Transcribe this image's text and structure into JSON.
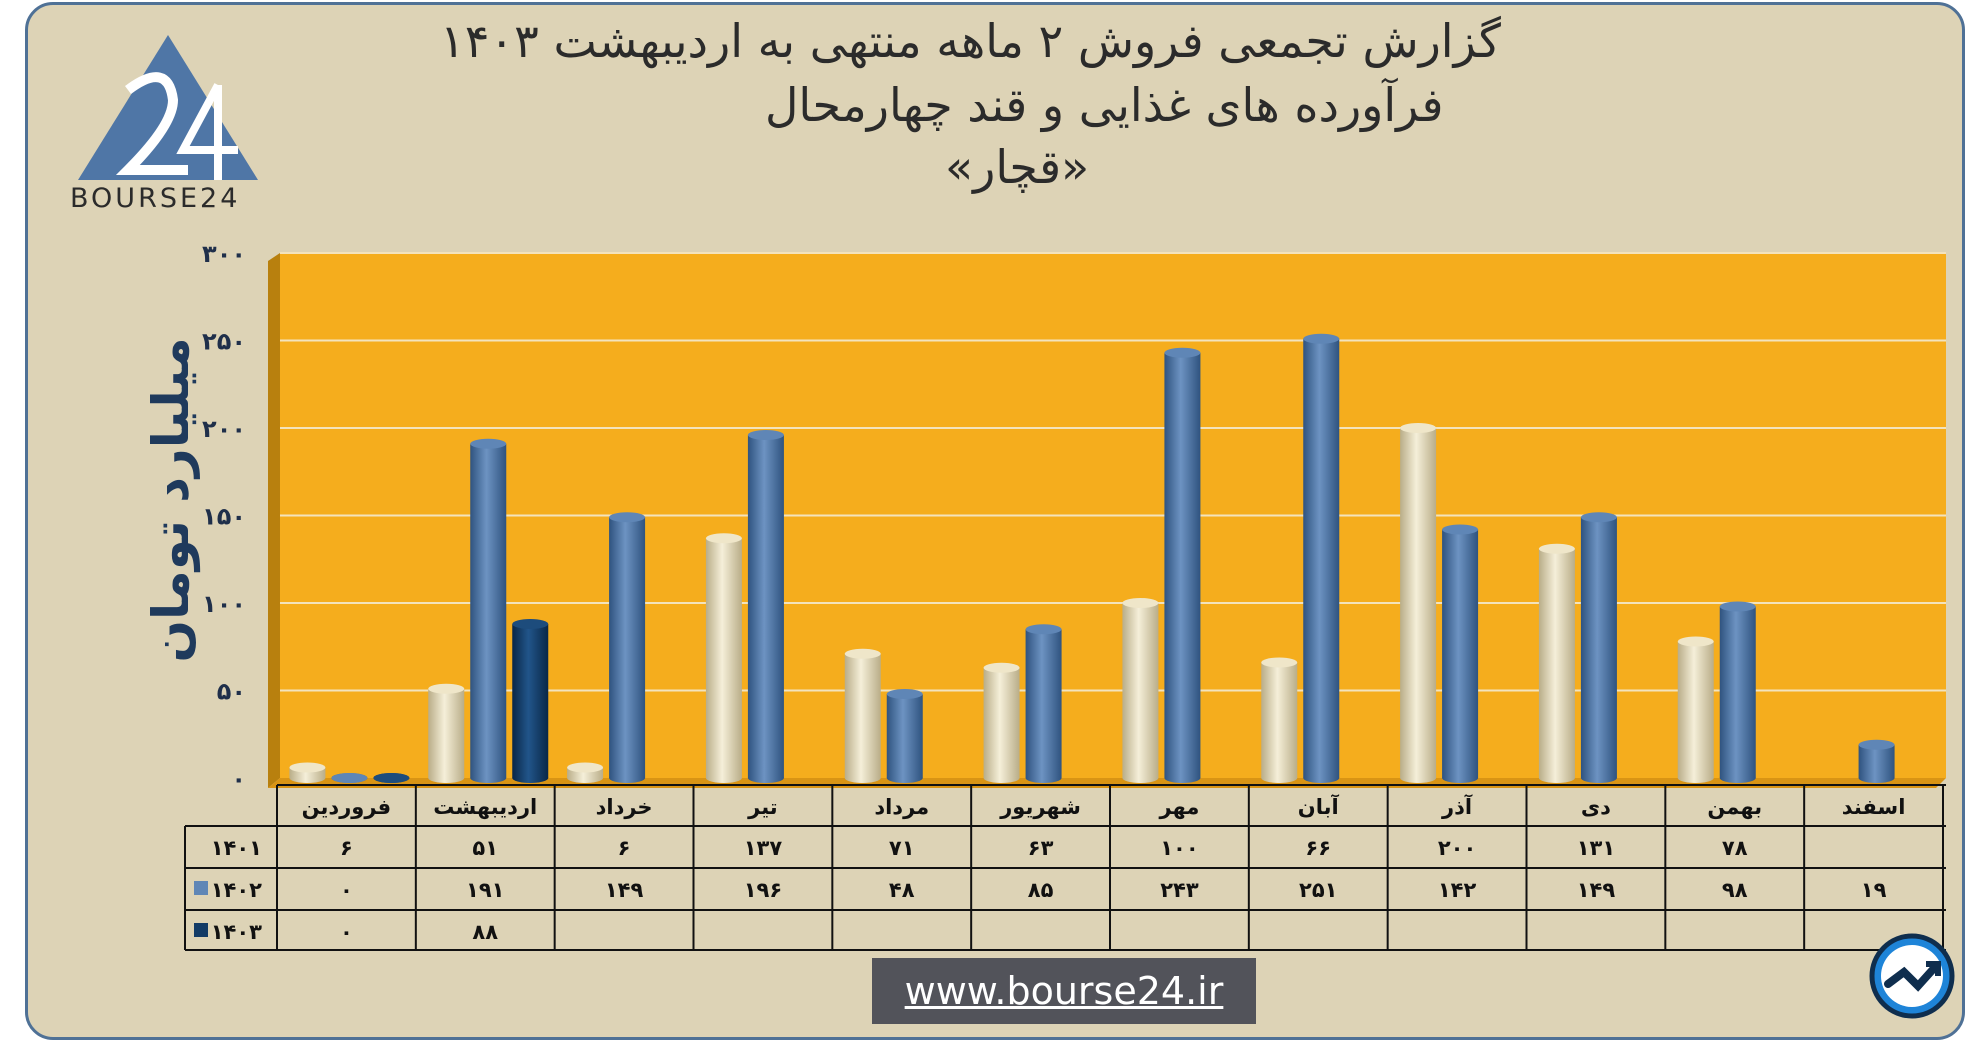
{
  "title": {
    "line1": "گزارش تجمعی فروش ۲ ماهه منتهی به اردیبهشت ۱۴۰۳",
    "line2": "فرآورده های غذایی و قند چهارمحال",
    "line3": "«قچار»"
  },
  "logo": {
    "text": "BOURSE24",
    "icon": "bourse24-logo-triangle"
  },
  "url": "www.bourse24.ir",
  "corner_icon": "trend-arrow-icon",
  "colors": {
    "plot_bg": "#f5ad1d",
    "series_1401": "#e6dcbc",
    "series_1402": "#4f76a6",
    "series_1403": "#123b66",
    "frame": "#ddd3b6",
    "axis_text": "#1f2f4a"
  },
  "chart_data": {
    "type": "bar",
    "ylabel": "میلیارد تومان",
    "ylim": [
      0,
      300
    ],
    "yticks": [
      "۰",
      "۵۰",
      "۱۰۰",
      "۱۵۰",
      "۲۰۰",
      "۲۵۰",
      "۳۰۰"
    ],
    "ytick_values": [
      0,
      50,
      100,
      150,
      200,
      250,
      300
    ],
    "grid": true,
    "categories": [
      "فروردین",
      "اردیبهشت",
      "خرداد",
      "تیر",
      "مرداد",
      "شهریور",
      "مهر",
      "آبان",
      "آذر",
      "دی",
      "بهمن",
      "اسفند"
    ],
    "series": [
      {
        "name": "۱۴۰۱",
        "values": [
          6,
          51,
          6,
          137,
          71,
          63,
          100,
          66,
          200,
          131,
          78,
          null
        ],
        "labels": [
          "۶",
          "۵۱",
          "۶",
          "۱۳۷",
          "۷۱",
          "۶۳",
          "۱۰۰",
          "۶۶",
          "۲۰۰",
          "۱۳۱",
          "۷۸",
          ""
        ]
      },
      {
        "name": "۱۴۰۲",
        "values": [
          0,
          191,
          149,
          196,
          48,
          85,
          243,
          251,
          142,
          149,
          98,
          19
        ],
        "labels": [
          "۰",
          "۱۹۱",
          "۱۴۹",
          "۱۹۶",
          "۴۸",
          "۸۵",
          "۲۴۳",
          "۲۵۱",
          "۱۴۲",
          "۱۴۹",
          "۹۸",
          "۱۹"
        ]
      },
      {
        "name": "۱۴۰۳",
        "values": [
          0,
          88,
          null,
          null,
          null,
          null,
          null,
          null,
          null,
          null,
          null,
          null
        ],
        "labels": [
          "۰",
          "۸۸",
          "",
          "",
          "",
          "",
          "",
          "",
          "",
          "",
          "",
          ""
        ]
      }
    ]
  }
}
